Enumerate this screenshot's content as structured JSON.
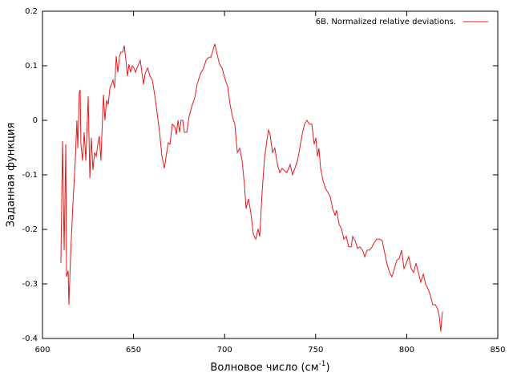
{
  "chart_data": {
    "type": "line",
    "x_label": {
      "text": "Волновое число (см",
      "sup": "-1",
      "end": ")"
    },
    "y_label": "Заданная функция",
    "xlim": [
      600,
      850
    ],
    "xticks": [
      600,
      650,
      700,
      750,
      800,
      850
    ],
    "ylim": [
      -0.4,
      0.2
    ],
    "yticks": [
      -0.4,
      -0.3,
      -0.2,
      -0.1,
      0,
      0.1,
      0.2
    ],
    "legend": "top-right",
    "series": [
      {
        "name": "6B. Normalized relative deviations.",
        "color": "#e41a1c",
        "x": [
          610.1,
          611,
          611.9,
          612.8,
          613.2,
          614.1,
          614.5,
          615.4,
          616.7,
          618,
          618.9,
          619.4,
          620.2,
          620.7,
          621.1,
          622,
          622.9,
          623.8,
          625.1,
          626,
          626.8,
          627.7,
          628.6,
          629.5,
          630.4,
          631.2,
          632.1,
          633,
          633.5,
          634.3,
          635.2,
          636.1,
          637,
          637.9,
          638.7,
          639.6,
          640.5,
          641.4,
          642.3,
          643.1,
          644,
          644.9,
          645.8,
          646.7,
          647.5,
          648.4,
          649.3,
          650.2,
          651.1,
          651.9,
          652.8,
          653.7,
          654.6,
          655.5,
          656.3,
          657.7,
          659,
          660.3,
          661.6,
          662.9,
          664.3,
          665.6,
          666.9,
          668.2,
          669.1,
          670,
          671.3,
          672.6,
          673.5,
          674.4,
          675.3,
          676.1,
          677,
          677.9,
          679.2,
          680.5,
          682.3,
          683.6,
          684.9,
          686.7,
          688.5,
          689.8,
          691.1,
          692.4,
          693.7,
          694.6,
          695.9,
          697.2,
          698.6,
          700.4,
          701.7,
          703,
          704.3,
          705.6,
          707,
          708.3,
          709.6,
          710.9,
          711.8,
          713.1,
          714.4,
          715.8,
          717.1,
          718.4,
          719.3,
          720.6,
          721.8,
          723.2,
          724.1,
          725,
          726.3,
          727.6,
          729,
          730.3,
          731.6,
          733,
          734.2,
          736,
          737.3,
          738.6,
          740,
          741.3,
          742.6,
          743.9,
          745.2,
          746.6,
          747.9,
          749.2,
          750.1,
          751,
          751.8,
          752.7,
          754,
          755.4,
          756.7,
          758,
          759.3,
          760.7,
          761.5,
          762.9,
          764.2,
          765.5,
          766.8,
          768.1,
          769.5,
          770.3,
          771.7,
          773,
          774.3,
          775.7,
          777,
          778.3,
          779.6,
          781,
          782.2,
          783.5,
          785.3,
          786.6,
          787.9,
          789.3,
          790.6,
          791.9,
          793.2,
          794.5,
          795.9,
          797.2,
          798.5,
          799.8,
          801.1,
          802.5,
          803.8,
          805.1,
          806.4,
          807.7,
          809.1,
          810.4,
          811.7,
          813,
          814.3,
          815.7,
          817,
          817.9,
          818.7,
          819.6
        ],
        "values": [
          -0.262,
          -0.038,
          -0.238,
          -0.044,
          -0.287,
          -0.276,
          -0.338,
          -0.25,
          -0.154,
          -0.074,
          0,
          -0.051,
          0.051,
          0.056,
          -0.044,
          -0.074,
          -0.022,
          -0.074,
          0.044,
          -0.106,
          -0.032,
          -0.091,
          -0.059,
          -0.066,
          -0.044,
          -0.029,
          -0.074,
          0.007,
          0.047,
          0,
          0.037,
          0.029,
          0.059,
          0.066,
          0.074,
          0.059,
          0.118,
          0.088,
          0.118,
          0.125,
          0.125,
          0.137,
          0.11,
          0.081,
          0.103,
          0.088,
          0.1,
          0.096,
          0.088,
          0.096,
          0.103,
          0.11,
          0.088,
          0.066,
          0.085,
          0.096,
          0.081,
          0.074,
          0.047,
          0.015,
          -0.022,
          -0.066,
          -0.088,
          -0.059,
          -0.041,
          -0.044,
          -0.007,
          -0.012,
          -0.026,
          0,
          -0.022,
          0,
          0,
          -0.022,
          -0.022,
          0.007,
          0.029,
          0.041,
          0.066,
          0.085,
          0.096,
          0.11,
          0.115,
          0.115,
          0.129,
          0.14,
          0.121,
          0.103,
          0.096,
          0.074,
          0.062,
          0.029,
          0.007,
          -0.007,
          -0.059,
          -0.051,
          -0.074,
          -0.118,
          -0.162,
          -0.144,
          -0.169,
          -0.209,
          -0.218,
          -0.199,
          -0.213,
          -0.132,
          -0.074,
          -0.037,
          -0.018,
          -0.026,
          -0.059,
          -0.051,
          -0.081,
          -0.096,
          -0.088,
          -0.093,
          -0.096,
          -0.081,
          -0.1,
          -0.088,
          -0.074,
          -0.051,
          -0.026,
          -0.007,
          0,
          -0.007,
          -0.007,
          -0.044,
          -0.032,
          -0.066,
          -0.051,
          -0.088,
          -0.11,
          -0.125,
          -0.132,
          -0.14,
          -0.162,
          -0.174,
          -0.165,
          -0.191,
          -0.199,
          -0.218,
          -0.213,
          -0.232,
          -0.232,
          -0.213,
          -0.221,
          -0.235,
          -0.232,
          -0.238,
          -0.25,
          -0.238,
          -0.238,
          -0.232,
          -0.224,
          -0.218,
          -0.218,
          -0.221,
          -0.243,
          -0.265,
          -0.279,
          -0.287,
          -0.272,
          -0.257,
          -0.253,
          -0.238,
          -0.272,
          -0.262,
          -0.25,
          -0.272,
          -0.279,
          -0.262,
          -0.279,
          -0.297,
          -0.282,
          -0.301,
          -0.309,
          -0.321,
          -0.338,
          -0.338,
          -0.346,
          -0.36,
          -0.387,
          -0.351
        ]
      }
    ]
  }
}
